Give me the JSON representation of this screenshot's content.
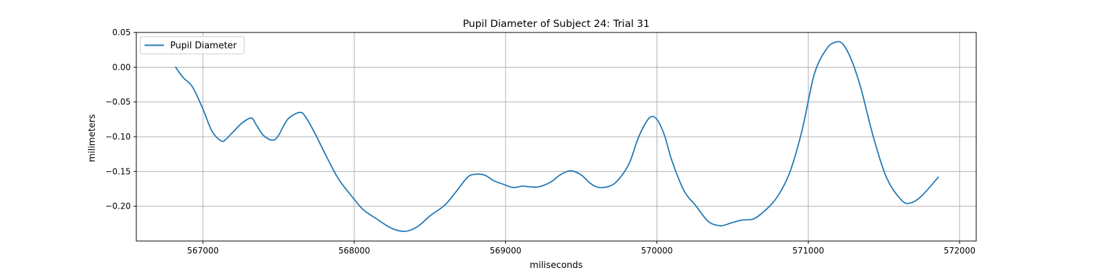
{
  "chart_data": {
    "type": "line",
    "title": "Pupil Diameter of Subject 24: Trial 31",
    "xlabel": "miliseconds",
    "ylabel": "milimeters",
    "xlim": [
      566560,
      572110
    ],
    "ylim": [
      -0.25,
      0.05
    ],
    "grid": true,
    "legend": {
      "position": "top-left",
      "entries": [
        "Pupil Diameter"
      ]
    },
    "x_ticks": [
      {
        "value": 567000,
        "label": "567000"
      },
      {
        "value": 568000,
        "label": "568000"
      },
      {
        "value": 569000,
        "label": "569000"
      },
      {
        "value": 570000,
        "label": "570000"
      },
      {
        "value": 571000,
        "label": "571000"
      },
      {
        "value": 572000,
        "label": "572000"
      }
    ],
    "y_ticks": [
      {
        "value": 0.05,
        "label": "0.05"
      },
      {
        "value": 0.0,
        "label": "0.00"
      },
      {
        "value": -0.05,
        "label": "−0.05"
      },
      {
        "value": -0.1,
        "label": "−0.10"
      },
      {
        "value": -0.15,
        "label": "−0.15"
      },
      {
        "value": -0.2,
        "label": "−0.20"
      }
    ],
    "series": [
      {
        "name": "Pupil Diameter",
        "color": "#1f77b4",
        "x": [
          566820,
          566870,
          566930,
          567000,
          567060,
          567120,
          567150,
          567200,
          567260,
          567320,
          567350,
          567400,
          567460,
          567500,
          567560,
          567640,
          567680,
          567740,
          567820,
          567900,
          568000,
          568060,
          568140,
          568250,
          568340,
          568420,
          568500,
          568600,
          568680,
          568750,
          568800,
          568860,
          568920,
          568980,
          569050,
          569110,
          569160,
          569220,
          569300,
          569360,
          569430,
          569500,
          569560,
          569620,
          569700,
          569760,
          569820,
          569880,
          569950,
          570000,
          570050,
          570100,
          570180,
          570260,
          570340,
          570420,
          570490,
          570560,
          570640,
          570720,
          570800,
          570880,
          570960,
          571040,
          571120,
          571180,
          571230,
          571290,
          571350,
          571430,
          571520,
          571620,
          571680,
          571750,
          571860
        ],
        "y": [
          0.0,
          -0.015,
          -0.028,
          -0.06,
          -0.092,
          -0.106,
          -0.104,
          -0.093,
          -0.08,
          -0.073,
          -0.082,
          -0.098,
          -0.105,
          -0.098,
          -0.075,
          -0.065,
          -0.072,
          -0.095,
          -0.13,
          -0.162,
          -0.19,
          -0.205,
          -0.217,
          -0.232,
          -0.236,
          -0.229,
          -0.214,
          -0.198,
          -0.177,
          -0.158,
          -0.154,
          -0.155,
          -0.163,
          -0.168,
          -0.173,
          -0.171,
          -0.172,
          -0.172,
          -0.165,
          -0.155,
          -0.149,
          -0.155,
          -0.167,
          -0.173,
          -0.17,
          -0.158,
          -0.137,
          -0.1,
          -0.073,
          -0.075,
          -0.098,
          -0.135,
          -0.178,
          -0.2,
          -0.222,
          -0.228,
          -0.224,
          -0.22,
          -0.218,
          -0.205,
          -0.185,
          -0.15,
          -0.09,
          -0.01,
          0.026,
          0.036,
          0.033,
          0.008,
          -0.032,
          -0.1,
          -0.16,
          -0.192,
          -0.195,
          -0.185,
          -0.158
        ]
      }
    ]
  }
}
